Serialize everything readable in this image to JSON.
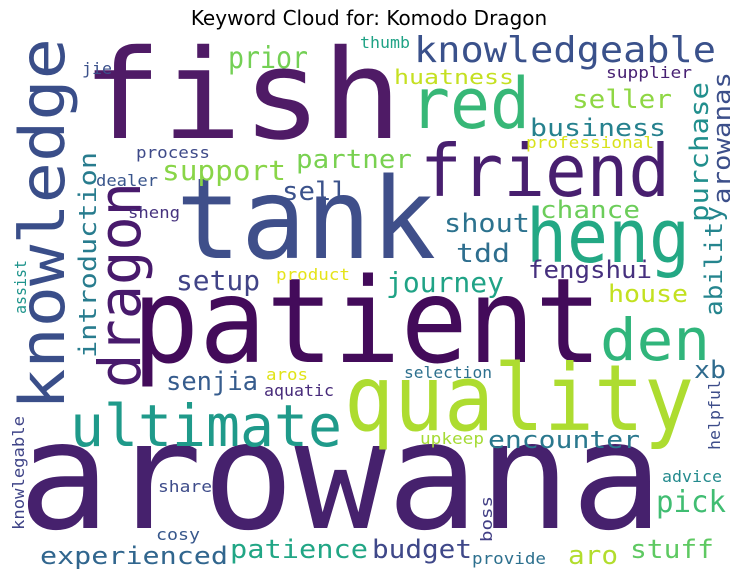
{
  "title": "Keyword Cloud for: Komodo Dragon",
  "words": [
    {
      "text": "arowana",
      "color": "#46216d"
    },
    {
      "text": "patient",
      "color": "#430b5a"
    },
    {
      "text": "fish",
      "color": "#4f1b66"
    },
    {
      "text": "tank",
      "color": "#3f4f8a"
    },
    {
      "text": "quality",
      "color": "#addc30"
    },
    {
      "text": "knowledge",
      "color": "#3a4e89"
    },
    {
      "text": "friend",
      "color": "#481f6f"
    },
    {
      "text": "heng",
      "color": "#23a884"
    },
    {
      "text": "ultimate",
      "color": "#1f9a8a"
    },
    {
      "text": "red",
      "color": "#37b777"
    },
    {
      "text": "dragon",
      "color": "#481a6c"
    },
    {
      "text": "den",
      "color": "#30b57b"
    },
    {
      "text": "knowledgeable",
      "color": "#3a518b"
    },
    {
      "text": "purchase",
      "color": "#218f8d"
    },
    {
      "text": "arowanas",
      "color": "#3c4f8a"
    },
    {
      "text": "introduction",
      "color": "#287c8e"
    },
    {
      "text": "prior",
      "color": "#74d055"
    },
    {
      "text": "seller",
      "color": "#8fd744"
    },
    {
      "text": "business",
      "color": "#26818e"
    },
    {
      "text": "partner",
      "color": "#79d151"
    },
    {
      "text": "support",
      "color": "#89d548"
    },
    {
      "text": "sell",
      "color": "#3b528b"
    },
    {
      "text": "shout",
      "color": "#2c728e"
    },
    {
      "text": "chance",
      "color": "#6ccd5a"
    },
    {
      "text": "tdd",
      "color": "#2e6e8e"
    },
    {
      "text": "ability",
      "color": "#25858e"
    },
    {
      "text": "journey",
      "color": "#20a386"
    },
    {
      "text": "setup",
      "color": "#414487"
    },
    {
      "text": "fengshui",
      "color": "#46307e"
    },
    {
      "text": "house",
      "color": "#c3e120"
    },
    {
      "text": "senjia",
      "color": "#365c8d"
    },
    {
      "text": "xb",
      "color": "#2f6b8e"
    },
    {
      "text": "encounter",
      "color": "#2a788e"
    },
    {
      "text": "pick",
      "color": "#40bd72"
    },
    {
      "text": "experienced",
      "color": "#31668e"
    },
    {
      "text": "patience",
      "color": "#21a685"
    },
    {
      "text": "budget",
      "color": "#3f4889"
    },
    {
      "text": "aro",
      "color": "#b2dd2d"
    },
    {
      "text": "stuff",
      "color": "#5ec962"
    },
    {
      "text": "huatness",
      "color": "#c5e021"
    },
    {
      "text": "supplier",
      "color": "#482173"
    },
    {
      "text": "professional",
      "color": "#d8e219"
    },
    {
      "text": "process",
      "color": "#3e4a89"
    },
    {
      "text": "dealer",
      "color": "#39558c"
    },
    {
      "text": "sheng",
      "color": "#46327e"
    },
    {
      "text": "product",
      "color": "#e5e419"
    },
    {
      "text": "aros",
      "color": "#e0e318"
    },
    {
      "text": "aquatic",
      "color": "#472a7a"
    },
    {
      "text": "selection",
      "color": "#2d708e"
    },
    {
      "text": "upkeep",
      "color": "#a5db36"
    },
    {
      "text": "helpful",
      "color": "#3d4d8a"
    },
    {
      "text": "advice",
      "color": "#238a8d"
    },
    {
      "text": "share",
      "color": "#3e4c8a"
    },
    {
      "text": "cosy",
      "color": "#38588c"
    },
    {
      "text": "boss",
      "color": "#423f85"
    },
    {
      "text": "provide",
      "color": "#2d708e"
    },
    {
      "text": "thumb",
      "color": "#20a386"
    },
    {
      "text": "jie",
      "color": "#3b518b"
    },
    {
      "text": "assist",
      "color": "#1f948c"
    },
    {
      "text": "knowlegable",
      "color": "#404588"
    }
  ]
}
